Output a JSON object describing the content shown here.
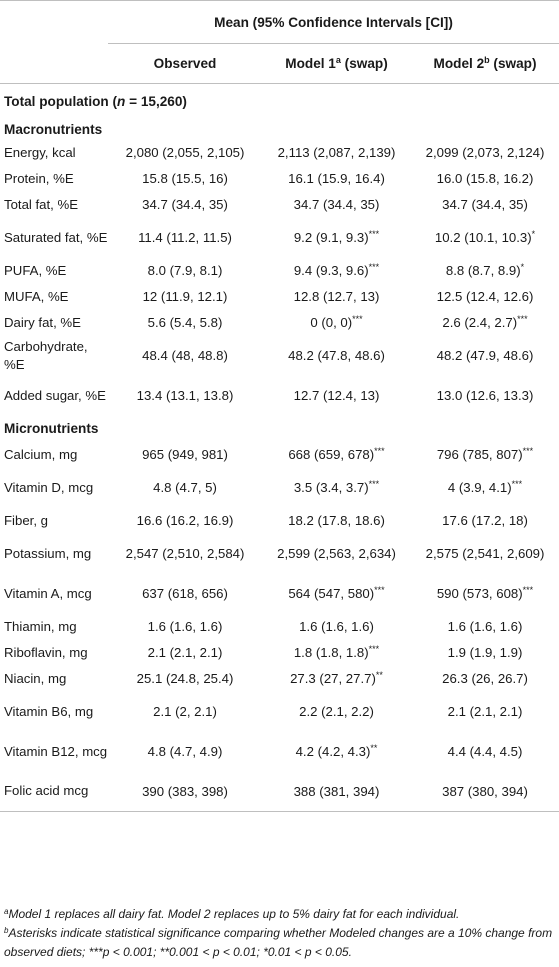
{
  "header": {
    "group_title": "Mean (95% Confidence Intervals [CI])",
    "col_observed": "Observed",
    "col_model1": "Model 1",
    "col_model1_sup": "a",
    "col_model1_suffix": " (swap)",
    "col_model2": "Model 2",
    "col_model2_sup": "b",
    "col_model2_suffix": " (swap)"
  },
  "population_label": "Total population (",
  "population_n": "n",
  "population_rest": " = 15,260)",
  "sections": {
    "macro": "Macronutrients",
    "micro": "Micronutrients"
  },
  "macro_rows": [
    {
      "label": "Energy, kcal",
      "obs": "2,080 (2,055, 2,105)",
      "m1": "2,113 (2,087, 2,139)",
      "m2": "2,099 (2,073, 2,124)"
    },
    {
      "label": "Protein, %E",
      "obs": "15.8 (15.5, 16)",
      "m1": "16.1 (15.9, 16.4)",
      "m2": "16.0 (15.8, 16.2)"
    },
    {
      "label": "Total fat, %E",
      "obs": "34.7 (34.4, 35)",
      "m1": "34.7 (34.4, 35)",
      "m2": "34.7 (34.4, 35)"
    },
    {
      "label": "Saturated fat, %E",
      "obs": "11.4 (11.2, 11.5)",
      "m1": "9.2 (9.1, 9.3)",
      "m1_sig": "***",
      "m2": "10.2 (10.1, 10.3)",
      "m2_sig": "*"
    },
    {
      "label": "PUFA, %E",
      "obs": "8.0 (7.9, 8.1)",
      "m1": "9.4 (9.3, 9.6)",
      "m1_sig": "***",
      "m2": "8.8 (8.7, 8.9)",
      "m2_sig": "*"
    },
    {
      "label": "MUFA, %E",
      "obs": "12 (11.9, 12.1)",
      "m1": "12.8 (12.7, 13)",
      "m2": "12.5 (12.4, 12.6)"
    },
    {
      "label": "Dairy fat, %E",
      "obs": "5.6 (5.4, 5.8)",
      "m1": "0 (0, 0)",
      "m1_sig": "***",
      "m2": "2.6 (2.4, 2.7)",
      "m2_sig": "***"
    },
    {
      "label": "Carbohydrate, %E",
      "obs": "48.4 (48, 48.8)",
      "m1": "48.2 (47.8, 48.6)",
      "m2": "48.2 (47.9, 48.6)"
    },
    {
      "label": "Added sugar, %E",
      "obs": "13.4 (13.1, 13.8)",
      "m1": "12.7 (12.4, 13)",
      "m2": "13.0 (12.6, 13.3)"
    }
  ],
  "micro_rows": [
    {
      "label": "Calcium, mg",
      "obs": "965 (949, 981)",
      "m1": "668 (659, 678)",
      "m1_sig": "***",
      "m2": "796 (785, 807)",
      "m2_sig": "***"
    },
    {
      "label": "Vitamin D, mcg",
      "obs": "4.8 (4.7, 5)",
      "m1": "3.5 (3.4, 3.7)",
      "m1_sig": "***",
      "m2": "4 (3.9, 4.1)",
      "m2_sig": "***"
    },
    {
      "label": "Fiber, g",
      "obs": "16.6 (16.2, 16.9)",
      "m1": "18.2 (17.8, 18.6)",
      "m2": "17.6 (17.2, 18)"
    },
    {
      "label": "Potassium, mg",
      "obs": "2,547 (2,510, 2,584)",
      "m1": "2,599 (2,563, 2,634)",
      "m2": "2,575 (2,541, 2,609)"
    },
    {
      "label": "Vitamin A, mcg",
      "obs": "637 (618, 656)",
      "m1": "564 (547, 580)",
      "m1_sig": "***",
      "m2": "590 (573, 608)",
      "m2_sig": "***"
    },
    {
      "label": "Thiamin, mg",
      "obs": "1.6 (1.6, 1.6)",
      "m1": "1.6 (1.6, 1.6)",
      "m2": "1.6 (1.6, 1.6)"
    },
    {
      "label": "Riboflavin, mg",
      "obs": "2.1 (2.1, 2.1)",
      "m1": "1.8 (1.8, 1.8)",
      "m1_sig": "***",
      "m2": "1.9 (1.9, 1.9)"
    },
    {
      "label": "Niacin, mg",
      "obs": "25.1 (24.8, 25.4)",
      "m1": "27.3 (27, 27.7)",
      "m1_sig": "**",
      "m2": "26.3 (26, 26.7)"
    },
    {
      "label": "Vitamin B6, mg",
      "obs": "2.1 (2, 2.1)",
      "m1": "2.2 (2.1, 2.2)",
      "m2": "2.1 (2.1, 2.1)"
    },
    {
      "label": "Vitamin B12, mcg",
      "obs": "4.8 (4.7, 4.9)",
      "m1": "4.2 (4.2, 4.3)",
      "m1_sig": "**",
      "m2": "4.4 (4.4, 4.5)"
    },
    {
      "label": "Folic acid mcg",
      "obs": "390 (383, 398)",
      "m1": "388 (381, 394)",
      "m2": "387 (380, 394)"
    }
  ],
  "footnotes": {
    "a_mark": "a",
    "a_text": "Model 1 replaces all dairy fat. Model 2 replaces up to 5% dairy fat for each individual.",
    "b_mark": "b",
    "b_text": "Asterisks indicate statistical significance comparing whether Modeled changes are a 10% change from observed diets; ***p < 0.001; **0.001 < p < 0.01; *0.01 < p < 0.05."
  }
}
